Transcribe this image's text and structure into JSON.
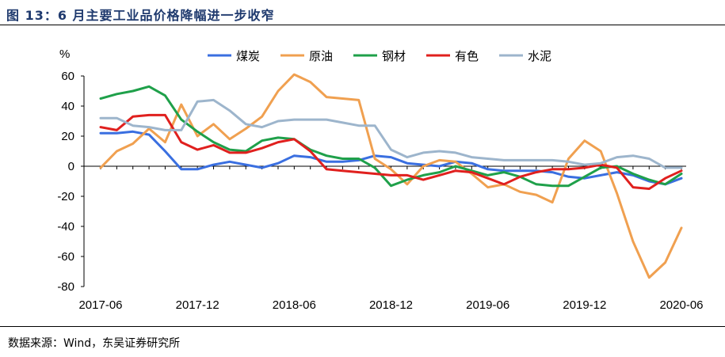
{
  "header": {
    "title": "图 13：6 月主要工业品价格降幅进一步收窄"
  },
  "footer": {
    "source": "数据来源：Wind，东吴证券研究所"
  },
  "chart_data": {
    "type": "line",
    "unit_label": "%",
    "ylim": [
      -80,
      60
    ],
    "yticks": [
      60,
      40,
      20,
      0,
      -20,
      -40,
      -60,
      -80
    ],
    "x": [
      "2017-06",
      "2017-07",
      "2017-08",
      "2017-09",
      "2017-10",
      "2017-11",
      "2017-12",
      "2018-01",
      "2018-02",
      "2018-03",
      "2018-04",
      "2018-05",
      "2018-06",
      "2018-07",
      "2018-08",
      "2018-09",
      "2018-10",
      "2018-11",
      "2018-12",
      "2019-01",
      "2019-02",
      "2019-03",
      "2019-04",
      "2019-05",
      "2019-06",
      "2019-07",
      "2019-08",
      "2019-09",
      "2019-10",
      "2019-11",
      "2019-12",
      "2020-01",
      "2020-02",
      "2020-03",
      "2020-04",
      "2020-05",
      "2020-06"
    ],
    "xtick_labels": [
      "2017-06",
      "2017-12",
      "2018-06",
      "2018-12",
      "2019-06",
      "2019-12",
      "2020-06"
    ],
    "legend_position": "top",
    "grid": false,
    "series": [
      {
        "name": "煤炭",
        "color": "#3a6fe0",
        "values": [
          22,
          22,
          23,
          21,
          10,
          -2,
          -2,
          1,
          3,
          1,
          -1,
          2,
          7,
          6,
          3,
          3,
          4,
          7,
          6,
          2,
          1,
          0,
          3,
          2,
          -2,
          -3,
          -3,
          -3,
          -4,
          -7,
          -8,
          -6,
          -4,
          -6,
          -10,
          -12,
          -8
        ]
      },
      {
        "name": "原油",
        "color": "#f0a050",
        "values": [
          -1,
          10,
          15,
          25,
          16,
          41,
          20,
          28,
          18,
          25,
          33,
          50,
          61,
          56,
          46,
          45,
          44,
          5,
          -2,
          -12,
          0,
          4,
          3,
          -5,
          -14,
          -12,
          -17,
          -19,
          -24,
          5,
          17,
          10,
          -18,
          -50,
          -74,
          -64,
          -41
        ]
      },
      {
        "name": "钢材",
        "color": "#1fa04a",
        "values": [
          45,
          48,
          50,
          53,
          47,
          31,
          23,
          16,
          11,
          10,
          17,
          19,
          18,
          11,
          7,
          5,
          5,
          -1,
          -13,
          -9,
          -6,
          -4,
          0,
          -3,
          -6,
          -4,
          -7,
          -12,
          -13,
          -13,
          -7,
          -1,
          0,
          -5,
          -9,
          -12,
          -5
        ]
      },
      {
        "name": "有色",
        "color": "#e0201e",
        "values": [
          26,
          24,
          33,
          34,
          34,
          16,
          11,
          14,
          9,
          9,
          12,
          16,
          18,
          10,
          -2,
          -3,
          -4,
          -5,
          -6,
          -6,
          -9,
          -6,
          -3,
          -4,
          -8,
          -12,
          -7,
          -4,
          -2,
          -2,
          -1,
          1,
          -1,
          -14,
          -15,
          -8,
          -3
        ]
      },
      {
        "name": "水泥",
        "color": "#9db5cc",
        "values": [
          32,
          32,
          27,
          26,
          24,
          24,
          43,
          44,
          37,
          28,
          26,
          30,
          31,
          31,
          31,
          29,
          27,
          27,
          11,
          6,
          9,
          10,
          9,
          6,
          5,
          4,
          4,
          4,
          4,
          3,
          1,
          2,
          6,
          7,
          5,
          -1,
          -1
        ]
      }
    ]
  }
}
